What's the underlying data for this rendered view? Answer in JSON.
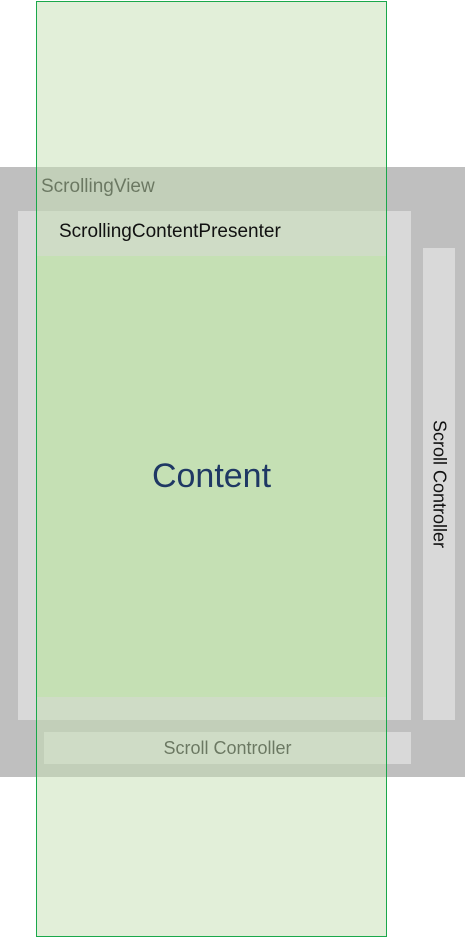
{
  "labels": {
    "scrolling_view": "ScrollingView",
    "content_presenter": "ScrollingContentPresenter",
    "content": "Content",
    "vertical_scroll_controller": "Scroll Controller",
    "horizontal_scroll_controller": "Scroll Controller"
  },
  "colors": {
    "scrolling_view": "#bfbfbf",
    "presenter": "#d9d9d9",
    "content_fill": "#c5e0b4",
    "content_border": "#1aa84b",
    "content_text": "#1f3864"
  }
}
